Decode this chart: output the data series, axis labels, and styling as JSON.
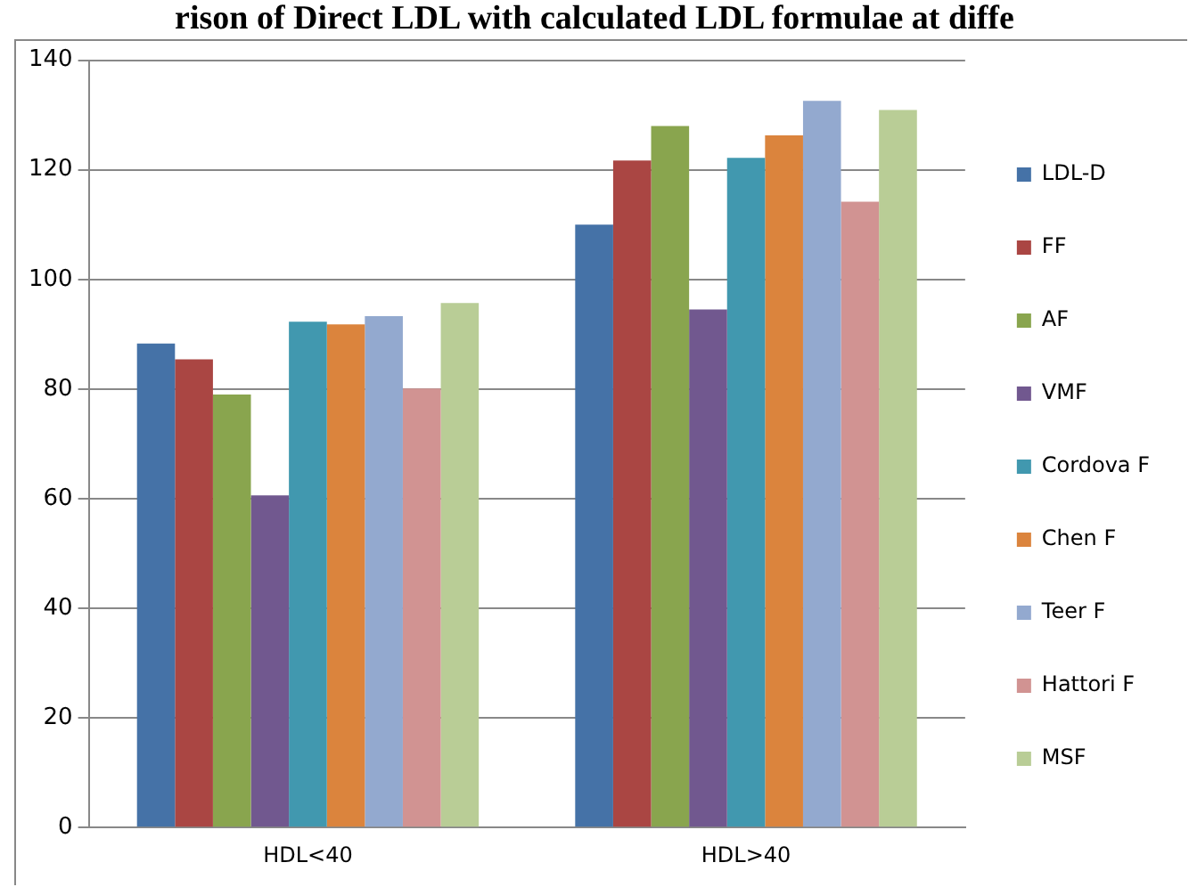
{
  "chart_data": {
    "type": "bar",
    "title": "rison of Direct LDL with calculated LDL formulae at diffe",
    "categories": [
      "HDL<40",
      "HDL>40"
    ],
    "series": [
      {
        "name": "LDL-D",
        "color": "#4572a7",
        "values": [
          88.3,
          110.0
        ]
      },
      {
        "name": "FF",
        "color": "#aa4643",
        "values": [
          85.4,
          121.7
        ]
      },
      {
        "name": "AF",
        "color": "#89a54e",
        "values": [
          79.0,
          128.0
        ]
      },
      {
        "name": "VMF",
        "color": "#71588f",
        "values": [
          60.6,
          94.5
        ]
      },
      {
        "name": "Cordova F",
        "color": "#4198af",
        "values": [
          92.3,
          122.2
        ]
      },
      {
        "name": "Chen F",
        "color": "#db843d",
        "values": [
          91.8,
          126.3
        ]
      },
      {
        "name": "Teer F",
        "color": "#93a9cf",
        "values": [
          93.3,
          132.6
        ]
      },
      {
        "name": "Hattori F",
        "color": "#d19392",
        "values": [
          80.1,
          114.2
        ]
      },
      {
        "name": "MSF",
        "color": "#b9cd96",
        "values": [
          95.7,
          130.9
        ]
      }
    ],
    "ylim": [
      0,
      140
    ],
    "yticks": [
      0,
      20,
      40,
      60,
      80,
      100,
      120,
      140
    ],
    "grid": "y",
    "legend": "right"
  }
}
